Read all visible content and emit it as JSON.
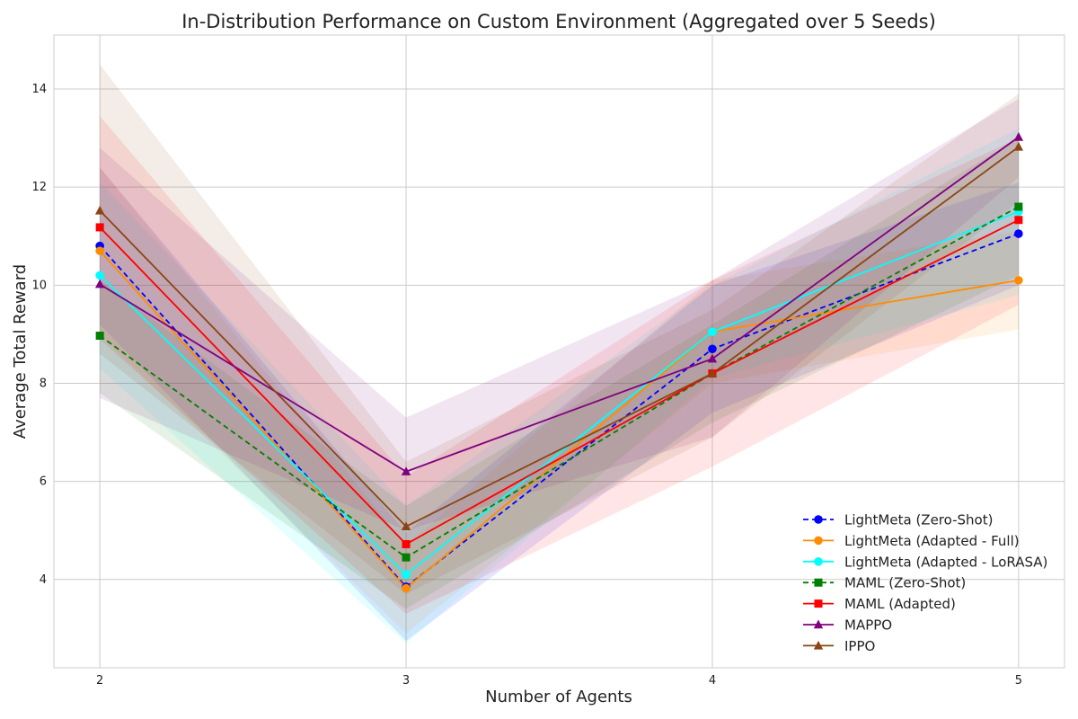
{
  "chart_data": {
    "type": "line",
    "title": "In-Distribution Performance on Custom Environment (Aggregated over 5 Seeds)",
    "xlabel": "Number of Agents",
    "ylabel": "Average Total Reward",
    "x": [
      2,
      3,
      4,
      5
    ],
    "x_ticks": [
      "2",
      "3",
      "4",
      "5"
    ],
    "xlim": [
      1.85,
      5.15
    ],
    "ylim": [
      2.2,
      15.1
    ],
    "y_ticks": [
      "4",
      "6",
      "8",
      "10",
      "12",
      "14"
    ],
    "y_tick_values": [
      4,
      6,
      8,
      10,
      12,
      14
    ],
    "grid": true,
    "legend_position": "lower-right",
    "series": [
      {
        "name": "LightMeta (Zero-Shot)",
        "color": "#0000ff",
        "dash": true,
        "marker": "circle",
        "values": [
          10.8,
          3.85,
          8.7,
          11.05
        ],
        "lower": [
          9.2,
          2.75,
          7.4,
          10.0
        ],
        "upper": [
          12.4,
          4.95,
          10.0,
          12.1
        ]
      },
      {
        "name": "LightMeta (Adapted - Full)",
        "color": "#ff8c00",
        "dash": false,
        "marker": "circle",
        "values": [
          10.7,
          3.82,
          9.05,
          10.1
        ],
        "lower": [
          9.0,
          2.9,
          8.0,
          9.1
        ],
        "upper": [
          12.4,
          4.7,
          10.1,
          11.1
        ]
      },
      {
        "name": "LightMeta (Adapted - LoRASA)",
        "color": "#00ffff",
        "dash": false,
        "marker": "circle",
        "values": [
          10.2,
          4.1,
          9.05,
          11.5
        ],
        "lower": [
          8.3,
          2.7,
          8.1,
          9.8
        ],
        "upper": [
          12.1,
          5.5,
          10.0,
          13.2
        ]
      },
      {
        "name": "MAML (Zero-Shot)",
        "color": "#008000",
        "dash": true,
        "marker": "square",
        "values": [
          8.97,
          4.45,
          8.2,
          11.6
        ],
        "lower": [
          7.8,
          3.4,
          7.2,
          10.2
        ],
        "upper": [
          10.1,
          5.5,
          9.2,
          13.0
        ]
      },
      {
        "name": "MAML (Adapted)",
        "color": "#ff0000",
        "dash": false,
        "marker": "square",
        "values": [
          11.18,
          4.72,
          8.2,
          11.33
        ],
        "lower": [
          8.9,
          3.3,
          6.3,
          9.6
        ],
        "upper": [
          13.45,
          6.1,
          10.1,
          13.0
        ]
      },
      {
        "name": "MAPPO",
        "color": "#800080",
        "dash": false,
        "marker": "triangle",
        "values": [
          10.02,
          6.2,
          8.5,
          13.02
        ],
        "lower": [
          7.7,
          5.0,
          6.9,
          12.2
        ],
        "upper": [
          12.8,
          7.3,
          10.1,
          13.8
        ]
      },
      {
        "name": "IPPO",
        "color": "#8b4513",
        "dash": false,
        "marker": "triangle",
        "values": [
          11.52,
          5.08,
          8.2,
          12.82
        ],
        "lower": [
          8.6,
          3.7,
          6.9,
          11.7
        ],
        "upper": [
          14.5,
          6.4,
          9.5,
          13.9
        ]
      }
    ]
  }
}
